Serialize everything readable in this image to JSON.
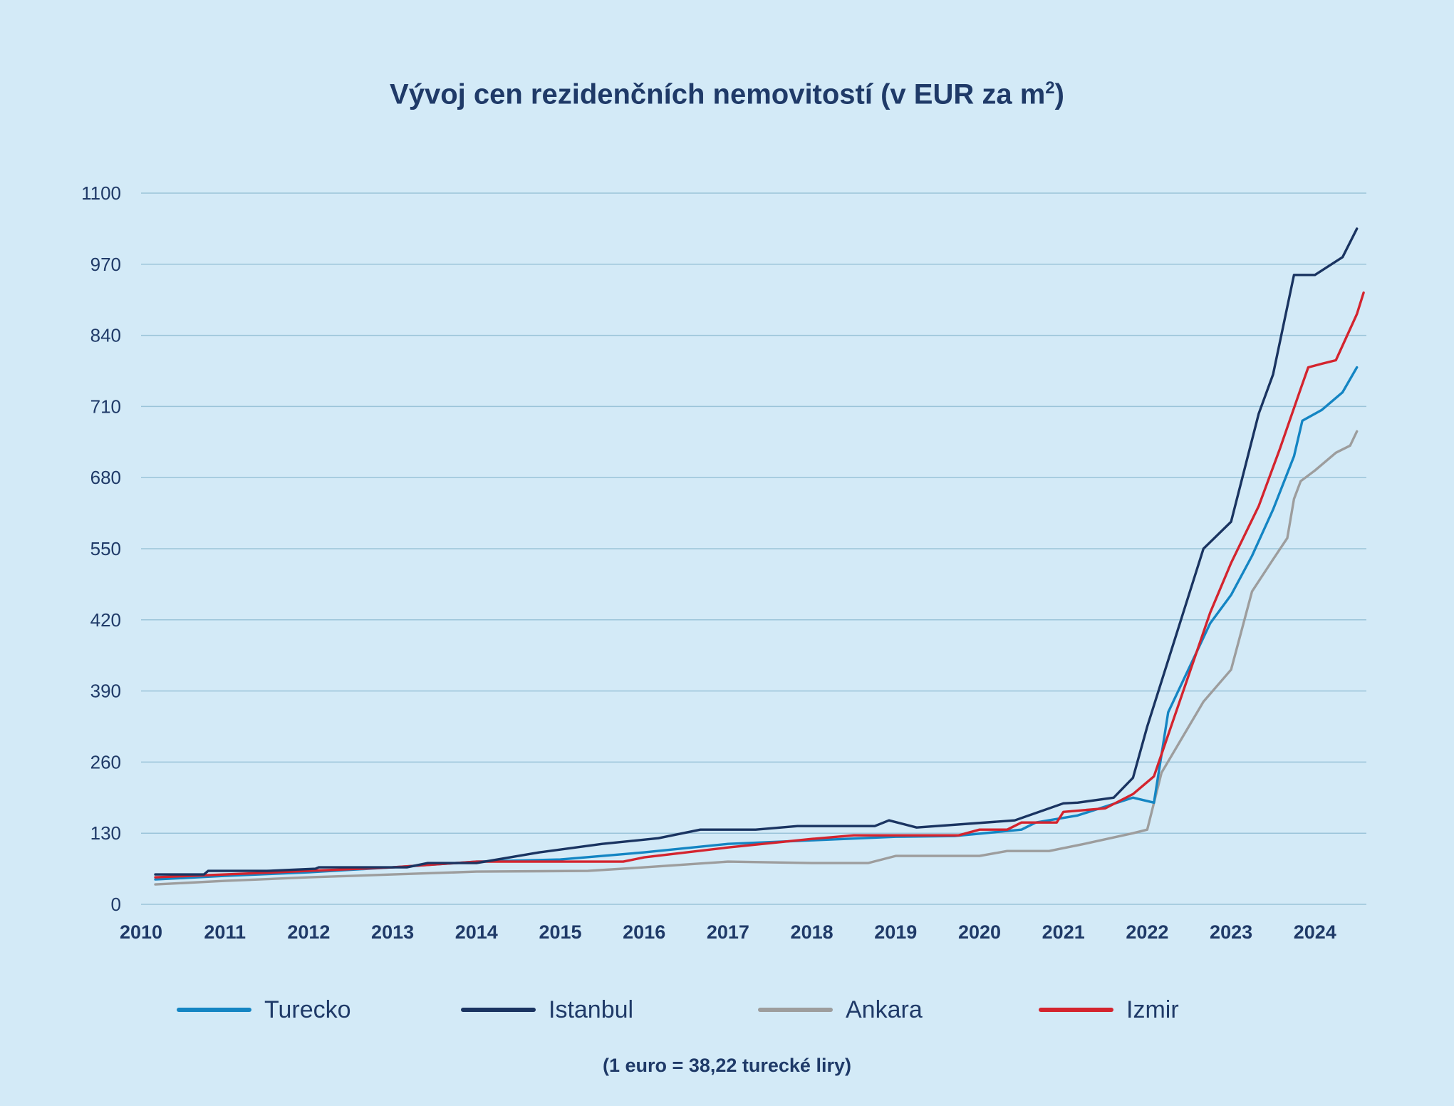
{
  "chart_data": {
    "type": "line",
    "title": "Vývoj cen rezidenčních nemovitostí (v EUR za m",
    "title_sup": "2",
    "title_close": ")",
    "footnote": "(1 euro = 38,22 turecké liry)",
    "y_ticks": [
      "0",
      "130",
      "260",
      "390",
      "420",
      "550",
      "680",
      "710",
      "840",
      "970",
      "1100"
    ],
    "x_ticks": [
      "2010",
      "2011",
      "2012",
      "2013",
      "2014",
      "2015",
      "2016",
      "2017",
      "2018",
      "2019",
      "2020",
      "2021",
      "2022",
      "2023",
      "2024"
    ],
    "xlim": [
      2010,
      2024.6
    ],
    "grid": true,
    "legend_position": "bottom",
    "y_note": "Y-axis tick labels are printed as shown (non-linear sequence); series values are given in tick-slot units (0 = first tick label, 10 = last).",
    "series": [
      {
        "name": "Turecko",
        "color": "#1485c3",
        "points": [
          [
            2010.17,
            0.35
          ],
          [
            2011.0,
            0.4
          ],
          [
            2012.0,
            0.45
          ],
          [
            2013.0,
            0.52
          ],
          [
            2014.0,
            0.6
          ],
          [
            2015.0,
            0.63
          ],
          [
            2016.0,
            0.73
          ],
          [
            2017.0,
            0.85
          ],
          [
            2018.0,
            0.9
          ],
          [
            2019.0,
            0.95
          ],
          [
            2019.7,
            0.96
          ],
          [
            2020.5,
            1.05
          ],
          [
            2020.67,
            1.15
          ],
          [
            2021.17,
            1.25
          ],
          [
            2021.83,
            1.5
          ],
          [
            2022.08,
            1.43
          ],
          [
            2022.25,
            2.7
          ],
          [
            2022.75,
            3.95
          ],
          [
            2023.0,
            4.35
          ],
          [
            2023.25,
            4.9
          ],
          [
            2023.5,
            5.55
          ],
          [
            2023.75,
            6.3
          ],
          [
            2023.85,
            6.8
          ],
          [
            2024.08,
            6.95
          ],
          [
            2024.33,
            7.2
          ],
          [
            2024.5,
            7.55
          ]
        ]
      },
      {
        "name": "Istanbul",
        "color": "#1a3461",
        "points": [
          [
            2010.17,
            0.42
          ],
          [
            2010.75,
            0.42
          ],
          [
            2010.8,
            0.47
          ],
          [
            2011.5,
            0.47
          ],
          [
            2012.08,
            0.5
          ],
          [
            2012.12,
            0.52
          ],
          [
            2013.17,
            0.52
          ],
          [
            2013.42,
            0.58
          ],
          [
            2014.0,
            0.58
          ],
          [
            2014.75,
            0.73
          ],
          [
            2015.5,
            0.85
          ],
          [
            2016.17,
            0.93
          ],
          [
            2016.67,
            1.05
          ],
          [
            2017.33,
            1.05
          ],
          [
            2017.83,
            1.1
          ],
          [
            2018.75,
            1.1
          ],
          [
            2018.92,
            1.18
          ],
          [
            2019.25,
            1.08
          ],
          [
            2020.42,
            1.18
          ],
          [
            2021.0,
            1.42
          ],
          [
            2021.17,
            1.43
          ],
          [
            2021.6,
            1.5
          ],
          [
            2021.83,
            1.78
          ],
          [
            2022.0,
            2.5
          ],
          [
            2022.67,
            5.0
          ],
          [
            2023.0,
            5.38
          ],
          [
            2023.33,
            6.9
          ],
          [
            2023.5,
            7.45
          ],
          [
            2023.75,
            8.85
          ],
          [
            2023.9,
            8.85
          ],
          [
            2024.0,
            8.85
          ],
          [
            2024.33,
            9.1
          ],
          [
            2024.5,
            9.5
          ]
        ]
      },
      {
        "name": "Ankara",
        "color": "#9d9d9d",
        "points": [
          [
            2010.17,
            0.28
          ],
          [
            2011.0,
            0.33
          ],
          [
            2012.0,
            0.38
          ],
          [
            2013.0,
            0.42
          ],
          [
            2014.0,
            0.46
          ],
          [
            2015.33,
            0.47
          ],
          [
            2016.0,
            0.52
          ],
          [
            2017.0,
            0.6
          ],
          [
            2018.0,
            0.58
          ],
          [
            2018.67,
            0.58
          ],
          [
            2019.0,
            0.68
          ],
          [
            2020.0,
            0.68
          ],
          [
            2020.33,
            0.75
          ],
          [
            2020.83,
            0.75
          ],
          [
            2021.25,
            0.85
          ],
          [
            2021.83,
            1.0
          ],
          [
            2022.0,
            1.05
          ],
          [
            2022.17,
            1.85
          ],
          [
            2022.67,
            2.85
          ],
          [
            2023.0,
            3.3
          ],
          [
            2023.25,
            4.4
          ],
          [
            2023.5,
            4.85
          ],
          [
            2023.67,
            5.15
          ],
          [
            2023.75,
            5.7
          ],
          [
            2023.83,
            5.95
          ],
          [
            2024.0,
            6.1
          ],
          [
            2024.25,
            6.35
          ],
          [
            2024.42,
            6.45
          ],
          [
            2024.5,
            6.65
          ]
        ]
      },
      {
        "name": "Izmir",
        "color": "#d4242e",
        "points": [
          [
            2010.17,
            0.38
          ],
          [
            2011.0,
            0.42
          ],
          [
            2012.0,
            0.47
          ],
          [
            2013.0,
            0.52
          ],
          [
            2014.0,
            0.6
          ],
          [
            2015.0,
            0.6
          ],
          [
            2015.75,
            0.6
          ],
          [
            2016.0,
            0.66
          ],
          [
            2017.0,
            0.8
          ],
          [
            2018.0,
            0.92
          ],
          [
            2018.5,
            0.97
          ],
          [
            2019.0,
            0.97
          ],
          [
            2019.75,
            0.97
          ],
          [
            2020.0,
            1.05
          ],
          [
            2020.33,
            1.05
          ],
          [
            2020.5,
            1.15
          ],
          [
            2020.92,
            1.15
          ],
          [
            2021.0,
            1.3
          ],
          [
            2021.5,
            1.35
          ],
          [
            2021.83,
            1.55
          ],
          [
            2022.08,
            1.8
          ],
          [
            2022.75,
            4.1
          ],
          [
            2023.0,
            4.8
          ],
          [
            2023.33,
            5.6
          ],
          [
            2023.58,
            6.4
          ],
          [
            2023.83,
            7.25
          ],
          [
            2023.92,
            7.55
          ],
          [
            2024.08,
            7.6
          ],
          [
            2024.25,
            7.65
          ],
          [
            2024.5,
            8.3
          ],
          [
            2024.58,
            8.6
          ]
        ]
      }
    ]
  }
}
